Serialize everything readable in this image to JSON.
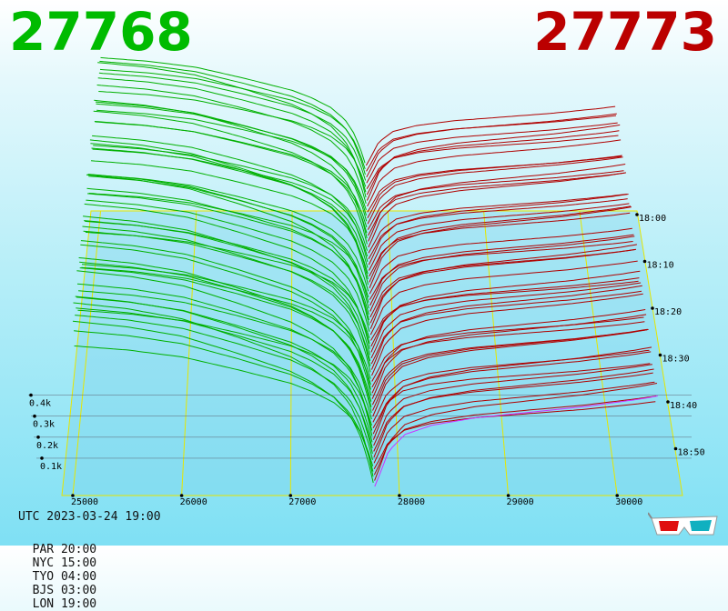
{
  "header": {
    "bid_price": "27768",
    "ask_price": "27773"
  },
  "colors": {
    "bid": "#00bb00",
    "ask": "#bb0000",
    "bid_line": "#00b000",
    "ask_line": "#b00000",
    "grid": "#e6e600",
    "base_line": "#cc33ff"
  },
  "footer": {
    "utc_label": "UTC 2023-03-24 19:00",
    "zones": [
      "PAR 20:00",
      "NYC 15:00",
      "TYO 04:00",
      "BJS 03:00",
      "LON 19:00"
    ]
  },
  "icons": {
    "glasses": "3d-glasses-icon"
  },
  "chart_data": {
    "type": "area",
    "x": [
      25000,
      26000,
      27000,
      28000,
      29000,
      30000
    ],
    "x_tick_labels": [
      "25000",
      "26000",
      "27000",
      "28000",
      "29000",
      "30000"
    ],
    "xlim": [
      24900,
      30600
    ],
    "depth_tick_labels": [
      "0.1k",
      "0.2k",
      "0.3k",
      "0.4k"
    ],
    "depth_ticks": [
      100,
      200,
      300,
      400
    ],
    "time_tick_labels": [
      "18:00",
      "18:10",
      "18:20",
      "18:30",
      "18:40",
      "18:50"
    ],
    "mid_price": 27770,
    "bid_depth_profile": {
      "price": [
        25000,
        25500,
        26000,
        26500,
        27000,
        27200,
        27400,
        27550,
        27650,
        27720,
        27768
      ],
      "cumulative": [
        445,
        430,
        405,
        360,
        310,
        280,
        240,
        190,
        130,
        60,
        0
      ]
    },
    "ask_depth_profile": {
      "price": [
        27773,
        27830,
        27900,
        28050,
        28300,
        28700,
        29200,
        29700,
        30200,
        30400
      ],
      "cumulative": [
        0,
        40,
        95,
        140,
        165,
        185,
        200,
        215,
        235,
        245
      ]
    }
  }
}
